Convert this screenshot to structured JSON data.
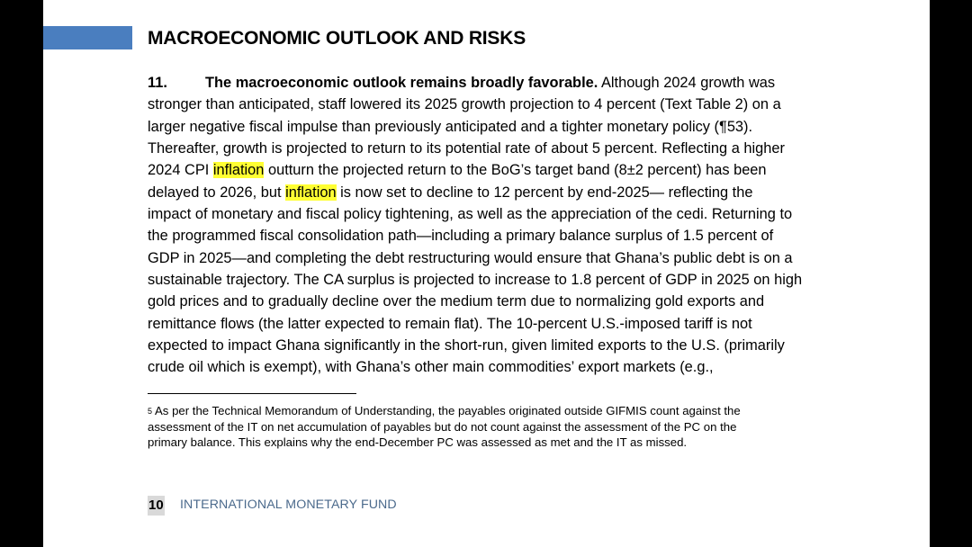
{
  "section_title": "MACROECONOMIC OUTLOOK AND RISKS",
  "paragraph": {
    "number": "11.",
    "lead": "The macroeconomic outlook remains broadly favorable.",
    "line1_rest": " Although 2024 growth was",
    "lines": [
      "stronger than anticipated, staff lowered its 2025 growth projection to 4 percent (Text Table 2) on a",
      "larger negative fiscal impulse than previously anticipated and a tighter monetary policy (¶53).",
      "Thereafter, growth is projected to return to its potential rate of about 5 percent. Reflecting a higher"
    ],
    "line5_pre": "2024 CPI ",
    "line5_hl": "inflation",
    "line5_post": " outturn the projected return to the BoG’s target band (8±2 percent) has been",
    "line6_pre": "delayed to 2026, but ",
    "line6_hl": "inflation",
    "line6_post": " is now set to decline to 12 percent by end-2025— reflecting the",
    "lines_after": [
      "impact of monetary and fiscal policy tightening, as well as the appreciation of the cedi. Returning to",
      "the programmed fiscal consolidation path—including a primary balance surplus of 1.5 percent of",
      "GDP in 2025—and completing the debt restructuring would ensure that Ghana’s public debt is on a",
      "sustainable trajectory. The CA surplus is projected to increase to 1.8 percent of GDP in 2025 on high",
      "gold prices and to gradually decline over the medium term due to normalizing gold exports and",
      "remittance flows (the latter expected to remain flat). The 10-percent U.S.-imposed tariff is not",
      "expected to impact Ghana significantly in the short-run, given limited exports to the U.S. (primarily",
      "crude oil which is exempt), with Ghana’s other main commodities’ export markets (e.g.,"
    ]
  },
  "footnote": {
    "marker": "5",
    "lines": [
      "As per the Technical Memorandum of Understanding, the payables originated outside GIFMIS count against the",
      "assessment of the IT on net accumulation of payables but do not count against the assessment of the PC on the",
      "primary balance. This explains why the end-December PC was assessed as met and the IT as missed."
    ]
  },
  "footer": {
    "page_number": "10",
    "running_text": "INTERNATIONAL MONETARY FUND"
  },
  "colors": {
    "accent_bar": "#4a7ebf",
    "highlight": "#ffff33",
    "footer_text": "#4b6a8c",
    "page_number_bg": "#d9d9d9"
  }
}
